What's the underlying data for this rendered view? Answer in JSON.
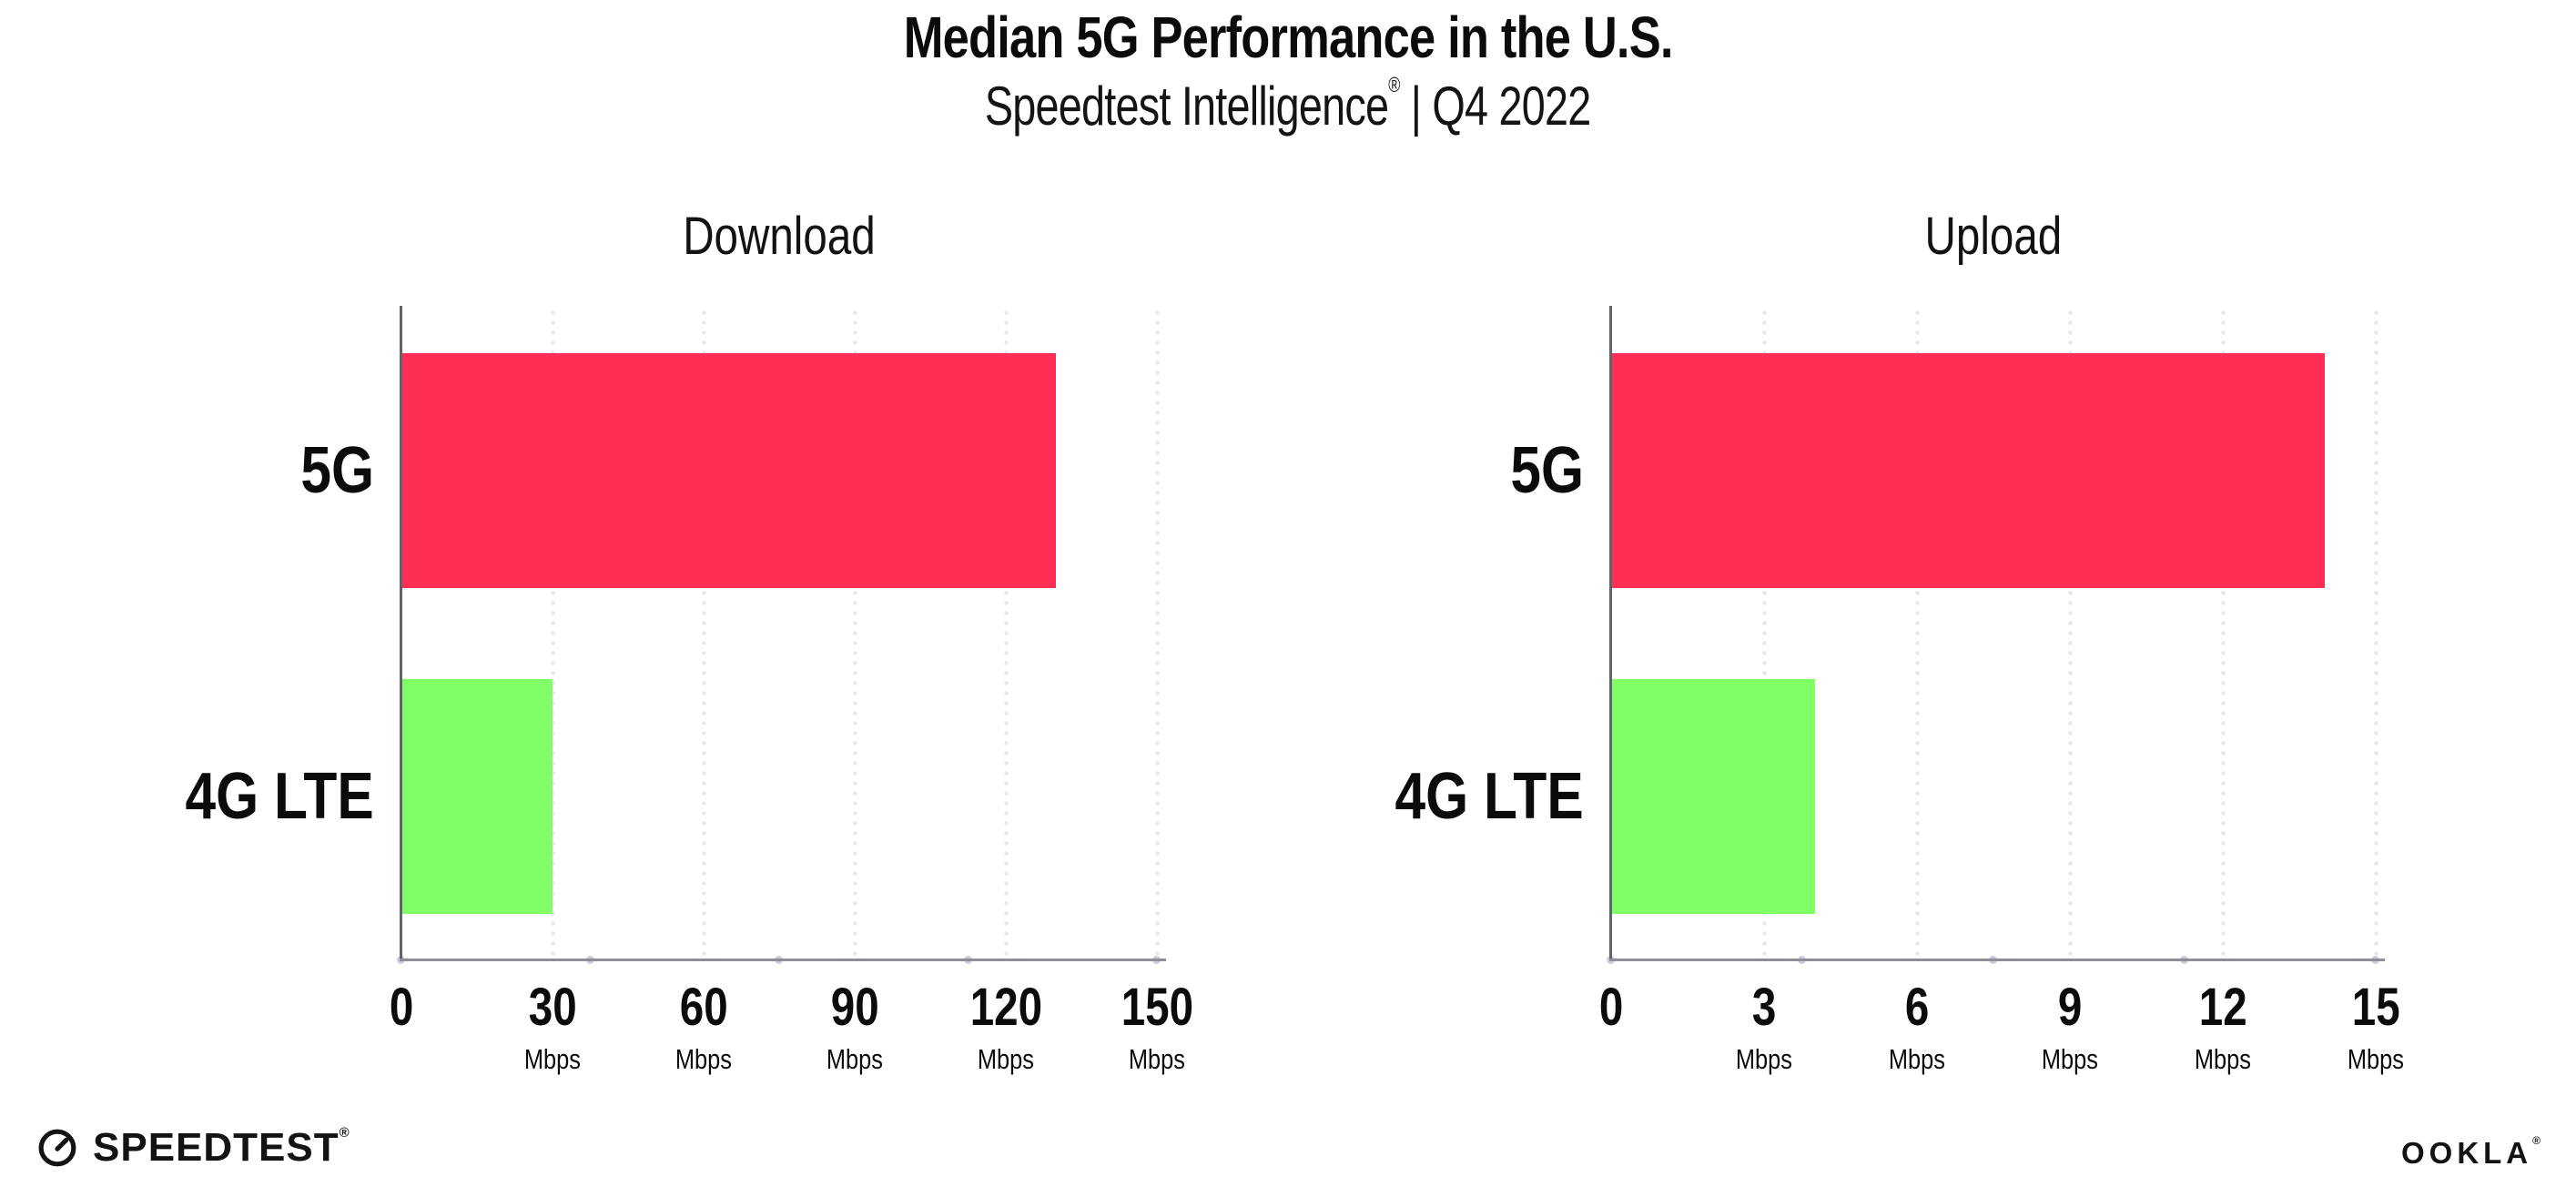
{
  "page": {
    "title": "Median 5G Performance in the U.S.",
    "subtitle_brand": "Speedtest Intelligence",
    "subtitle_reg": "®",
    "subtitle_rest": " | Q4 2022"
  },
  "colors": {
    "bar_5g": "#ff2e55",
    "bar_4g_lte": "#80ff66",
    "grid_dot": "#e6e6f0",
    "x_axis_line": "#8f8f99",
    "y_axis_line": "#63636c",
    "axis_quarter_dot": "#c9cdda",
    "text": "#0b0b0b"
  },
  "chart_data": [
    {
      "type": "bar",
      "orientation": "horizontal",
      "title": "Download",
      "categories": [
        "5G",
        "4G LTE"
      ],
      "values": [
        130,
        30
      ],
      "unit": "Mbps",
      "xlim": [
        0,
        150
      ],
      "xticks": [
        0,
        30,
        60,
        90,
        120,
        150
      ],
      "bar_colors": [
        "#ff2e55",
        "#80ff66"
      ],
      "grid": "dotted-vertical",
      "legend": "none"
    },
    {
      "type": "bar",
      "orientation": "horizontal",
      "title": "Upload",
      "categories": [
        "5G",
        "4G LTE"
      ],
      "values": [
        14,
        4
      ],
      "unit": "Mbps",
      "xlim": [
        0,
        15
      ],
      "xticks": [
        0,
        3,
        6,
        9,
        12,
        15
      ],
      "bar_colors": [
        "#ff2e55",
        "#80ff66"
      ],
      "grid": "dotted-vertical",
      "legend": "none"
    }
  ],
  "footer": {
    "speedtest_logo_text": "SPEEDTEST",
    "speedtest_reg": "®",
    "ookla_logo_text": "OOKLA",
    "ookla_reg": "®"
  }
}
